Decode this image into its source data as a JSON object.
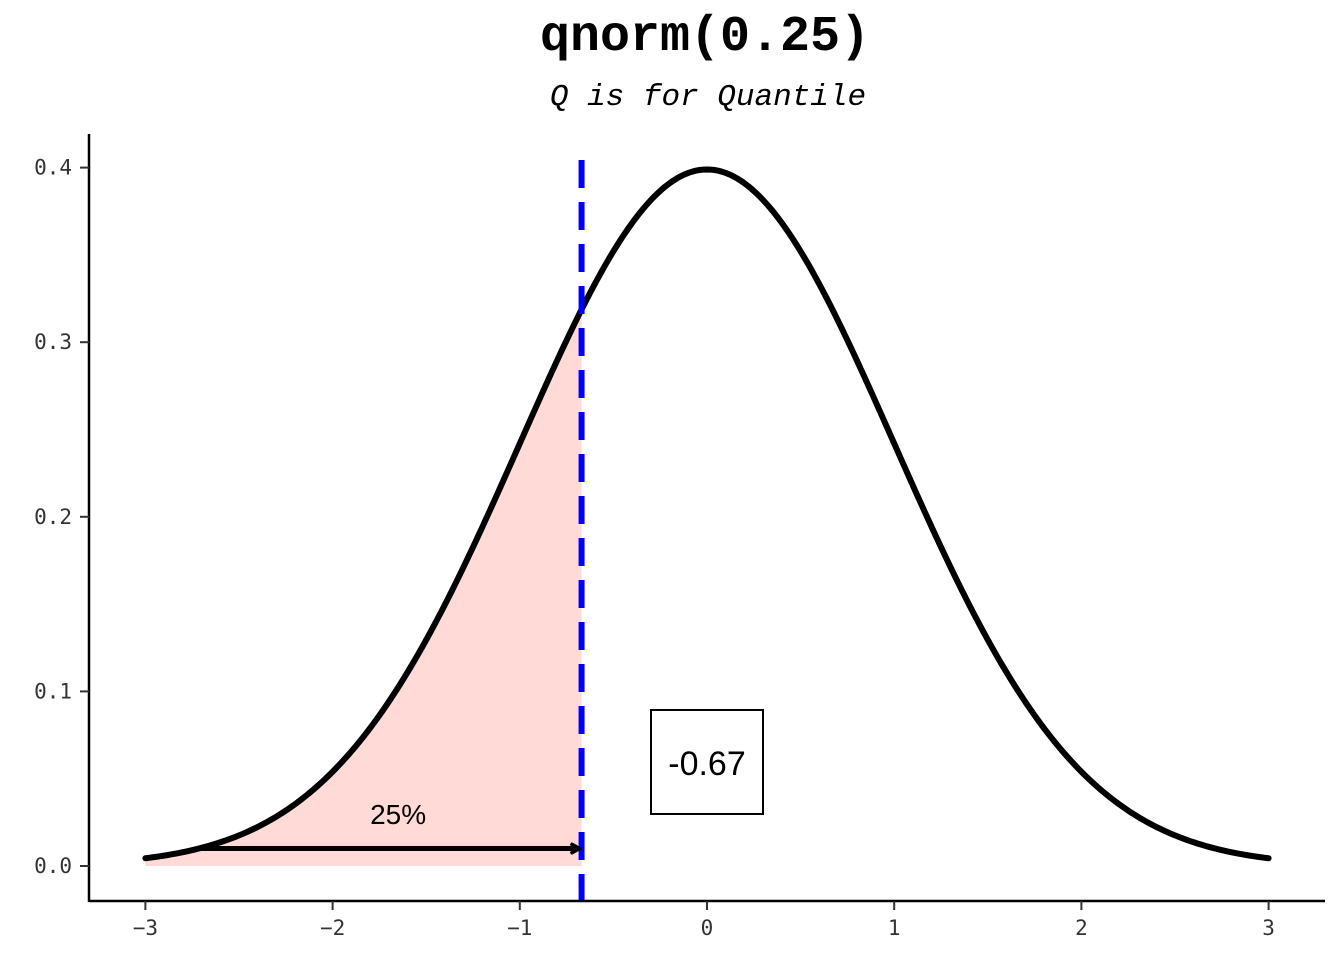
{
  "chart_data": {
    "type": "area",
    "title": "qnorm(0.25)",
    "subtitle": "Q is for Quantile",
    "xlabel": "",
    "ylabel": "",
    "xlim": [
      -3,
      3
    ],
    "ylim": [
      0,
      0.4
    ],
    "x_ticks": [
      -3,
      -2,
      -1,
      0,
      1,
      2,
      3
    ],
    "x_tick_labels": [
      "−3",
      "−2",
      "−1",
      "0",
      "1",
      "2",
      "3"
    ],
    "y_ticks": [
      0.0,
      0.1,
      0.2,
      0.3,
      0.4
    ],
    "y_tick_labels": [
      "0.0",
      "0.1",
      "0.2",
      "0.3",
      "0.4"
    ],
    "grid": false,
    "curve": {
      "function": "standard normal density",
      "x": [
        -3.0,
        -2.5,
        -2.0,
        -1.5,
        -1.0,
        -0.5,
        0.0,
        0.5,
        1.0,
        1.5,
        2.0,
        2.5,
        3.0
      ],
      "y": [
        0.0044,
        0.0175,
        0.054,
        0.1295,
        0.242,
        0.3521,
        0.3989,
        0.3521,
        0.242,
        0.1295,
        0.054,
        0.0175,
        0.0044
      ],
      "color": "#000000"
    },
    "shaded_region": {
      "x_from": -3,
      "x_to": -0.67,
      "color": "#ffdad6"
    },
    "quantile_line": {
      "x": -0.67,
      "style": "dashed",
      "color": "#0000ff"
    },
    "arrow": {
      "x_from": -2.7,
      "x_to": -0.67,
      "y": 0.01,
      "label": "25%",
      "label_x": -1.65,
      "label_y": 0.024
    },
    "value_label": {
      "text": "-0.67",
      "x": 0,
      "y": 0.059
    }
  }
}
